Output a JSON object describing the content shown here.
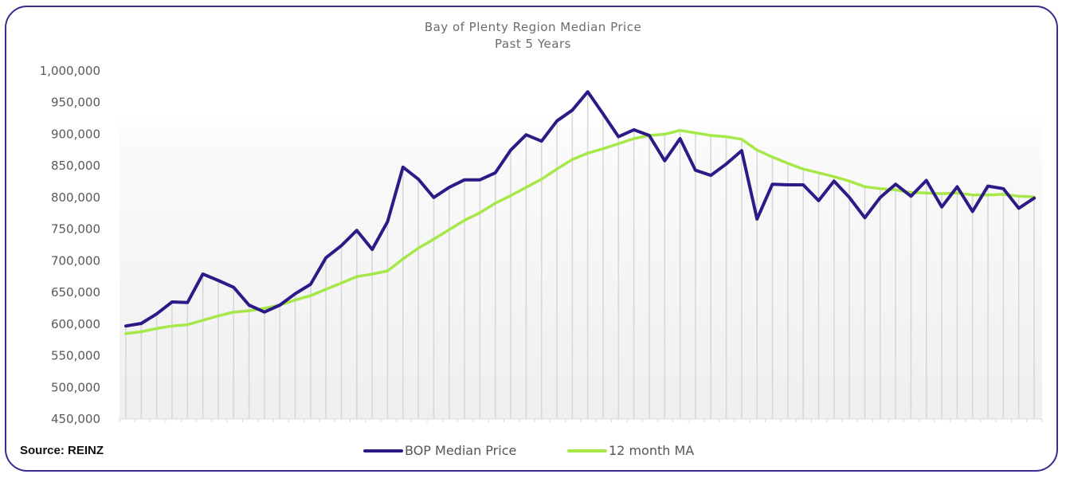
{
  "chart_data": {
    "type": "line",
    "title": "Bay of Plenty Region Median Price",
    "subtitle": "Past 5 Years",
    "xlabel": "",
    "ylabel": "",
    "ylim": [
      450000,
      1000000
    ],
    "yticks": [
      "1,000,000",
      "950,000",
      "900,000",
      "850,000",
      "800,000",
      "750,000",
      "700,000",
      "650,000",
      "600,000",
      "550,000",
      "500,000",
      "450,000"
    ],
    "ytick_values": [
      1000000,
      950000,
      900000,
      850000,
      800000,
      750000,
      700000,
      650000,
      600000,
      550000,
      500000,
      450000
    ],
    "x": [
      1,
      2,
      3,
      4,
      5,
      6,
      7,
      8,
      9,
      10,
      11,
      12,
      13,
      14,
      15,
      16,
      17,
      18,
      19,
      20,
      21,
      22,
      23,
      24,
      25,
      26,
      27,
      28,
      29,
      30,
      31,
      32,
      33,
      34,
      35,
      36,
      37,
      38,
      39,
      40,
      41,
      42,
      43,
      44,
      45,
      46,
      47,
      48,
      49,
      50,
      51,
      52,
      53,
      54,
      55,
      56,
      57,
      58,
      59,
      60
    ],
    "drop_lines": true,
    "legend_position": "bottom-center",
    "series": [
      {
        "name": "BOP Median Price",
        "color": "#2e1a87",
        "values": [
          597000,
          601000,
          616000,
          635000,
          634000,
          679000,
          669000,
          658000,
          630000,
          619000,
          630000,
          648000,
          663000,
          705000,
          724000,
          748000,
          718000,
          762000,
          848000,
          829000,
          800000,
          816000,
          828000,
          828000,
          839000,
          875000,
          899000,
          889000,
          921000,
          938000,
          967000,
          932000,
          896000,
          907000,
          898000,
          858000,
          893000,
          843000,
          835000,
          853000,
          874000,
          766000,
          821000,
          820000,
          820000,
          795000,
          826000,
          800000,
          768000,
          800000,
          821000,
          802000,
          827000,
          785000,
          817000,
          778000,
          818000,
          814000,
          783000,
          799000
        ]
      },
      {
        "name": "12 month MA",
        "color": "#a6e84a",
        "values": [
          585000,
          588000,
          593000,
          597000,
          599000,
          606000,
          613000,
          619000,
          621000,
          625000,
          630000,
          638000,
          645000,
          655000,
          665000,
          675000,
          679000,
          684000,
          703000,
          720000,
          734000,
          749000,
          764000,
          776000,
          791000,
          803000,
          816000,
          829000,
          845000,
          860000,
          870000,
          877000,
          885000,
          893000,
          898000,
          900000,
          906000,
          902000,
          898000,
          896000,
          892000,
          875000,
          864000,
          854000,
          845000,
          839000,
          833000,
          826000,
          817000,
          814000,
          812000,
          808000,
          807000,
          806000,
          807000,
          804000,
          804000,
          805000,
          802000,
          801000
        ]
      }
    ]
  },
  "footer": {
    "source": "Source: REINZ"
  }
}
